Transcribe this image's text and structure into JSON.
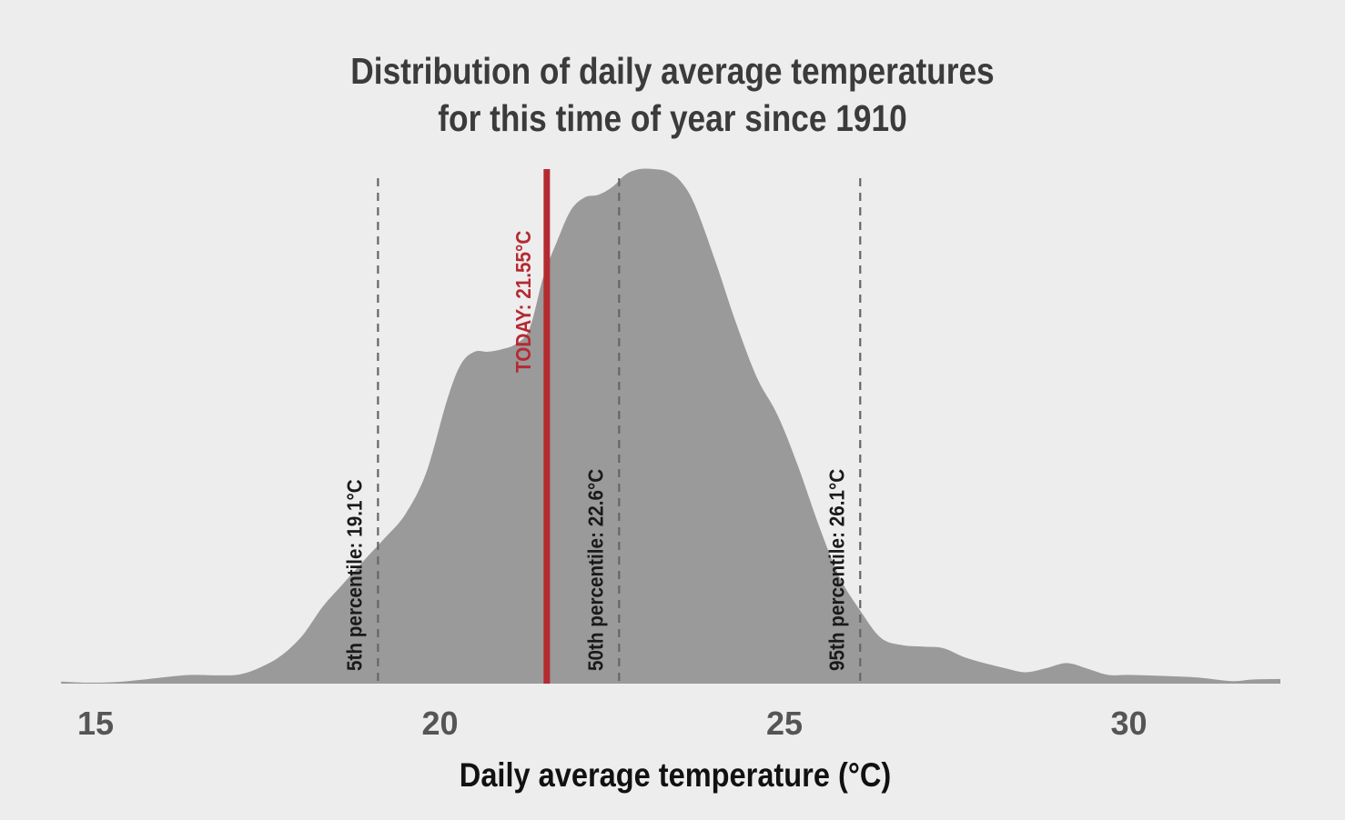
{
  "chart_data": {
    "type": "area",
    "title_line1": "Distribution of daily average temperatures",
    "title_line2": "for this time of year since 1910",
    "xlabel": "Daily average temperature (°C)",
    "ylabel": "",
    "xlim": [
      14.5,
      32.2
    ],
    "xticks": [
      15,
      20,
      25,
      30
    ],
    "x": [
      14.5,
      14.9,
      15.3,
      15.7,
      16.1,
      16.4,
      16.8,
      17.1,
      17.4,
      17.7,
      18.0,
      18.3,
      18.6,
      18.9,
      19.2,
      19.5,
      19.8,
      20.1,
      20.3,
      20.5,
      20.7,
      20.9,
      21.1,
      21.3,
      21.5,
      21.7,
      21.9,
      22.1,
      22.3,
      22.5,
      22.7,
      22.9,
      23.1,
      23.3,
      23.5,
      23.7,
      24.0,
      24.3,
      24.6,
      24.9,
      25.2,
      25.5,
      25.8,
      26.1,
      26.4,
      26.7,
      27.0,
      27.3,
      27.6,
      27.9,
      28.2,
      28.5,
      28.8,
      29.1,
      29.4,
      29.7,
      30.0,
      30.5,
      31.0,
      31.5,
      31.8,
      32.2
    ],
    "density": [
      0.004,
      0.002,
      0.003,
      0.008,
      0.014,
      0.017,
      0.016,
      0.018,
      0.032,
      0.055,
      0.093,
      0.15,
      0.195,
      0.24,
      0.283,
      0.33,
      0.41,
      0.55,
      0.62,
      0.645,
      0.645,
      0.65,
      0.66,
      0.69,
      0.79,
      0.86,
      0.92,
      0.945,
      0.95,
      0.965,
      0.99,
      1.0,
      1.0,
      0.995,
      0.975,
      0.93,
      0.82,
      0.7,
      0.595,
      0.522,
      0.422,
      0.307,
      0.207,
      0.142,
      0.089,
      0.075,
      0.072,
      0.069,
      0.052,
      0.04,
      0.03,
      0.022,
      0.03,
      0.04,
      0.029,
      0.017,
      0.017,
      0.015,
      0.012,
      0.005,
      0.008,
      0.009
    ],
    "percentiles": [
      {
        "label": "5th percentile:  19.1°C",
        "value": 19.1
      },
      {
        "label": "50th percentile:  22.6°C",
        "value": 22.6
      },
      {
        "label": "95th percentile:  26.1°C",
        "value": 26.1
      }
    ],
    "today": {
      "label": "TODAY:  21.55°C",
      "value": 21.55
    },
    "colors": {
      "background": "#ededed",
      "area": "#9a9a9a",
      "today": "#b52a31",
      "percentile_line": "#666666"
    },
    "grid": false,
    "legend": "none"
  }
}
